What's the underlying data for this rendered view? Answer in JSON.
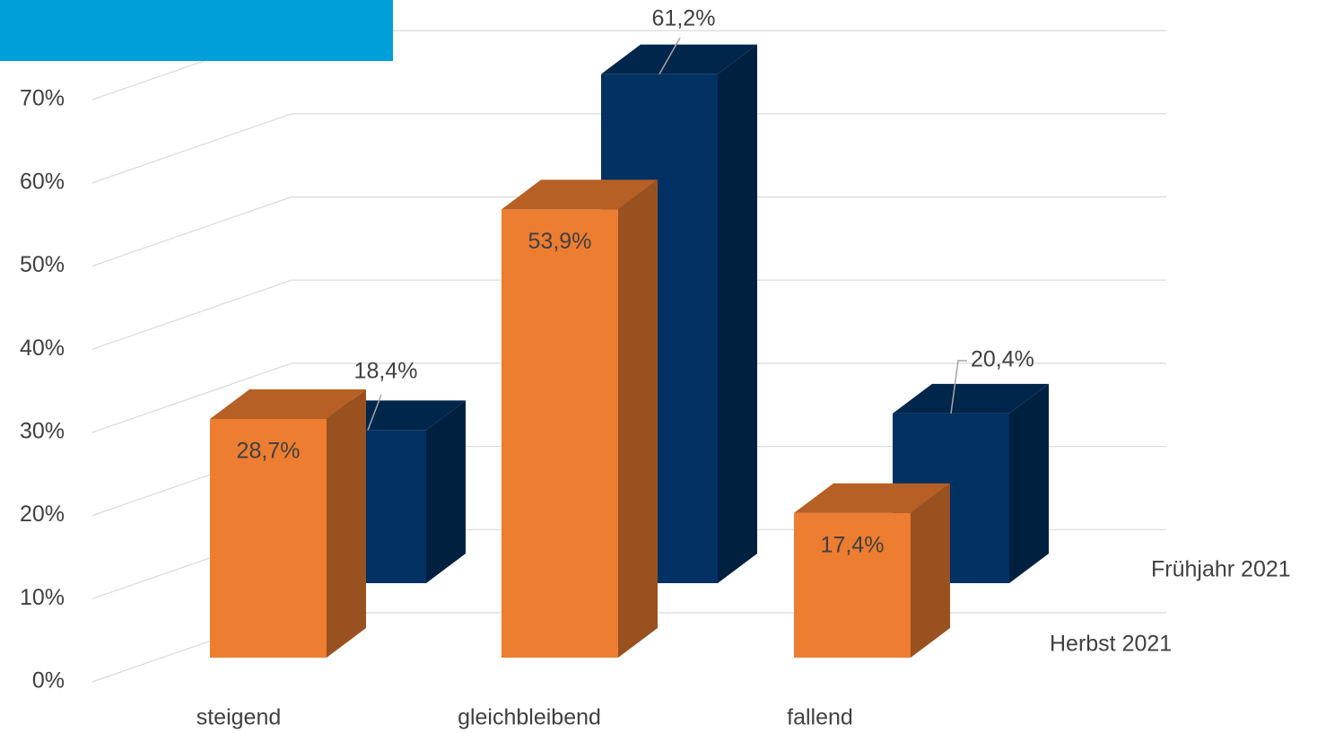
{
  "chart_data": {
    "type": "bar3d",
    "categories": [
      "steigend",
      "gleichbleibend",
      "fallend"
    ],
    "series": [
      {
        "name": "Herbst 2021",
        "color": "#ed7d31",
        "values": [
          28.7,
          53.9,
          17.4
        ],
        "value_labels": [
          "28,7%",
          "53,9%",
          "17,4%"
        ]
      },
      {
        "name": "Frühjahr 2021",
        "color": "#003163",
        "values": [
          18.4,
          61.2,
          20.4
        ],
        "value_labels": [
          "18,4%",
          "61,2%",
          "20,4%"
        ]
      }
    ],
    "ylim": [
      0,
      70
    ],
    "yticks": [
      {
        "value": 0,
        "label": "0%"
      },
      {
        "value": 10,
        "label": "10%"
      },
      {
        "value": 20,
        "label": "20%"
      },
      {
        "value": 30,
        "label": "30%"
      },
      {
        "value": 40,
        "label": "40%"
      },
      {
        "value": 50,
        "label": "50%"
      },
      {
        "value": 60,
        "label": "60%"
      },
      {
        "value": 70,
        "label": "70%"
      }
    ],
    "grid": true
  }
}
